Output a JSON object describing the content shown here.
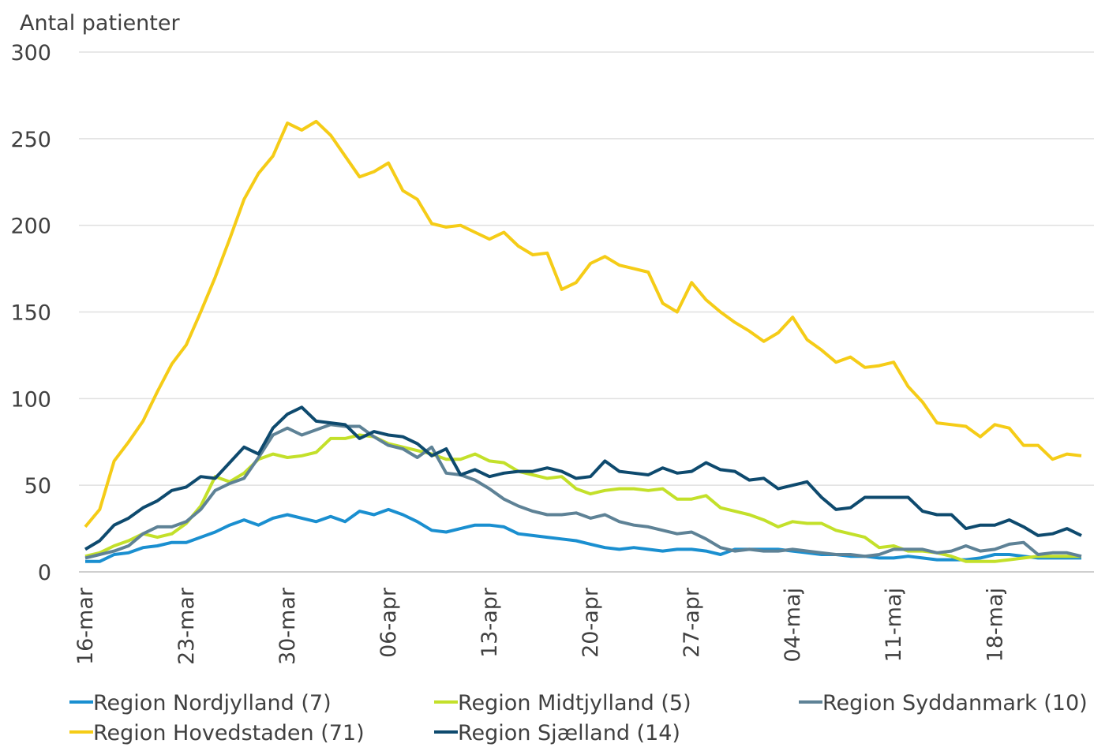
{
  "chart_data": {
    "type": "line",
    "y_label": "Antal patienter",
    "categories": [
      "16-mar",
      null,
      null,
      null,
      null,
      null,
      null,
      "23-mar",
      null,
      null,
      null,
      null,
      null,
      null,
      "30-mar",
      null,
      null,
      null,
      null,
      null,
      null,
      "06-apr",
      null,
      null,
      null,
      null,
      null,
      null,
      "13-apr",
      null,
      null,
      null,
      null,
      null,
      null,
      "20-apr",
      null,
      null,
      null,
      null,
      null,
      null,
      "27-apr",
      null,
      null,
      null,
      null,
      null,
      null,
      "04-maj",
      null,
      null,
      null,
      null,
      null,
      null,
      "11-maj",
      null,
      null,
      null,
      null,
      null,
      null,
      "18-maj",
      null,
      null,
      null,
      null,
      null,
      null
    ],
    "series": [
      {
        "name": "Region Nordjylland (7)",
        "color": "#1a8fd0",
        "values": [
          6,
          6,
          10,
          11,
          14,
          15,
          17,
          17,
          20,
          23,
          27,
          30,
          27,
          31,
          33,
          31,
          29,
          32,
          29,
          35,
          33,
          36,
          33,
          29,
          24,
          23,
          25,
          27,
          27,
          26,
          22,
          21,
          20,
          19,
          18,
          16,
          14,
          13,
          14,
          13,
          12,
          13,
          13,
          12,
          10,
          13,
          13,
          13,
          13,
          12,
          11,
          10,
          10,
          9,
          9,
          8,
          8,
          9,
          8,
          7,
          7,
          7,
          8,
          10,
          10,
          9,
          8,
          8,
          8,
          8
        ]
      },
      {
        "name": "Region Midtjylland (5)",
        "color": "#c3e02a",
        "values": [
          9,
          11,
          15,
          18,
          22,
          20,
          22,
          28,
          38,
          55,
          52,
          57,
          65,
          68,
          66,
          67,
          69,
          77,
          77,
          79,
          78,
          74,
          72,
          70,
          68,
          65,
          65,
          68,
          64,
          63,
          58,
          56,
          54,
          55,
          48,
          45,
          47,
          48,
          48,
          47,
          48,
          42,
          42,
          44,
          37,
          35,
          33,
          30,
          26,
          29,
          28,
          28,
          24,
          22,
          20,
          14,
          15,
          12,
          12,
          11,
          9,
          6,
          6,
          6,
          7,
          8,
          9,
          9,
          9,
          9
        ]
      },
      {
        "name": "Region Syddanmark (10)",
        "color": "#5e8296",
        "values": [
          8,
          10,
          12,
          15,
          22,
          26,
          26,
          29,
          36,
          47,
          51,
          54,
          66,
          79,
          83,
          79,
          82,
          85,
          84,
          84,
          78,
          73,
          71,
          66,
          72,
          57,
          56,
          53,
          48,
          42,
          38,
          35,
          33,
          33,
          34,
          31,
          33,
          29,
          27,
          26,
          24,
          22,
          23,
          19,
          14,
          12,
          13,
          12,
          12,
          13,
          12,
          11,
          10,
          10,
          9,
          10,
          13,
          13,
          13,
          11,
          12,
          15,
          12,
          13,
          16,
          17,
          10,
          11,
          11,
          9
        ]
      },
      {
        "name": "Region Hovedstaden (71)",
        "color": "#f5cc17",
        "values": [
          26,
          36,
          64,
          75,
          87,
          104,
          120,
          131,
          150,
          170,
          192,
          215,
          230,
          240,
          259,
          255,
          260,
          252,
          240,
          228,
          231,
          236,
          220,
          215,
          201,
          199,
          200,
          196,
          192,
          196,
          188,
          183,
          184,
          163,
          167,
          178,
          182,
          177,
          175,
          173,
          155,
          150,
          167,
          157,
          150,
          144,
          139,
          133,
          138,
          147,
          134,
          128,
          121,
          124,
          118,
          119,
          121,
          107,
          98,
          86,
          85,
          84,
          78,
          85,
          83,
          73,
          73,
          65,
          68,
          67
        ]
      },
      {
        "name": "Region Sjælland (14)",
        "color": "#0e4a6e",
        "values": [
          13,
          18,
          27,
          31,
          37,
          41,
          47,
          49,
          55,
          54,
          63,
          72,
          68,
          83,
          91,
          95,
          87,
          86,
          85,
          77,
          81,
          79,
          78,
          74,
          67,
          71,
          56,
          59,
          55,
          57,
          58,
          58,
          60,
          58,
          54,
          55,
          64,
          58,
          57,
          56,
          60,
          57,
          58,
          63,
          59,
          58,
          53,
          54,
          48,
          50,
          52,
          43,
          36,
          37,
          43,
          43,
          43,
          43,
          35,
          33,
          33,
          25,
          27,
          27,
          30,
          26,
          21,
          22,
          25,
          21
        ]
      }
    ],
    "ylim": [
      0,
      300
    ],
    "yticks": [
      0,
      50,
      100,
      150,
      200,
      250,
      300
    ],
    "grid": true
  }
}
